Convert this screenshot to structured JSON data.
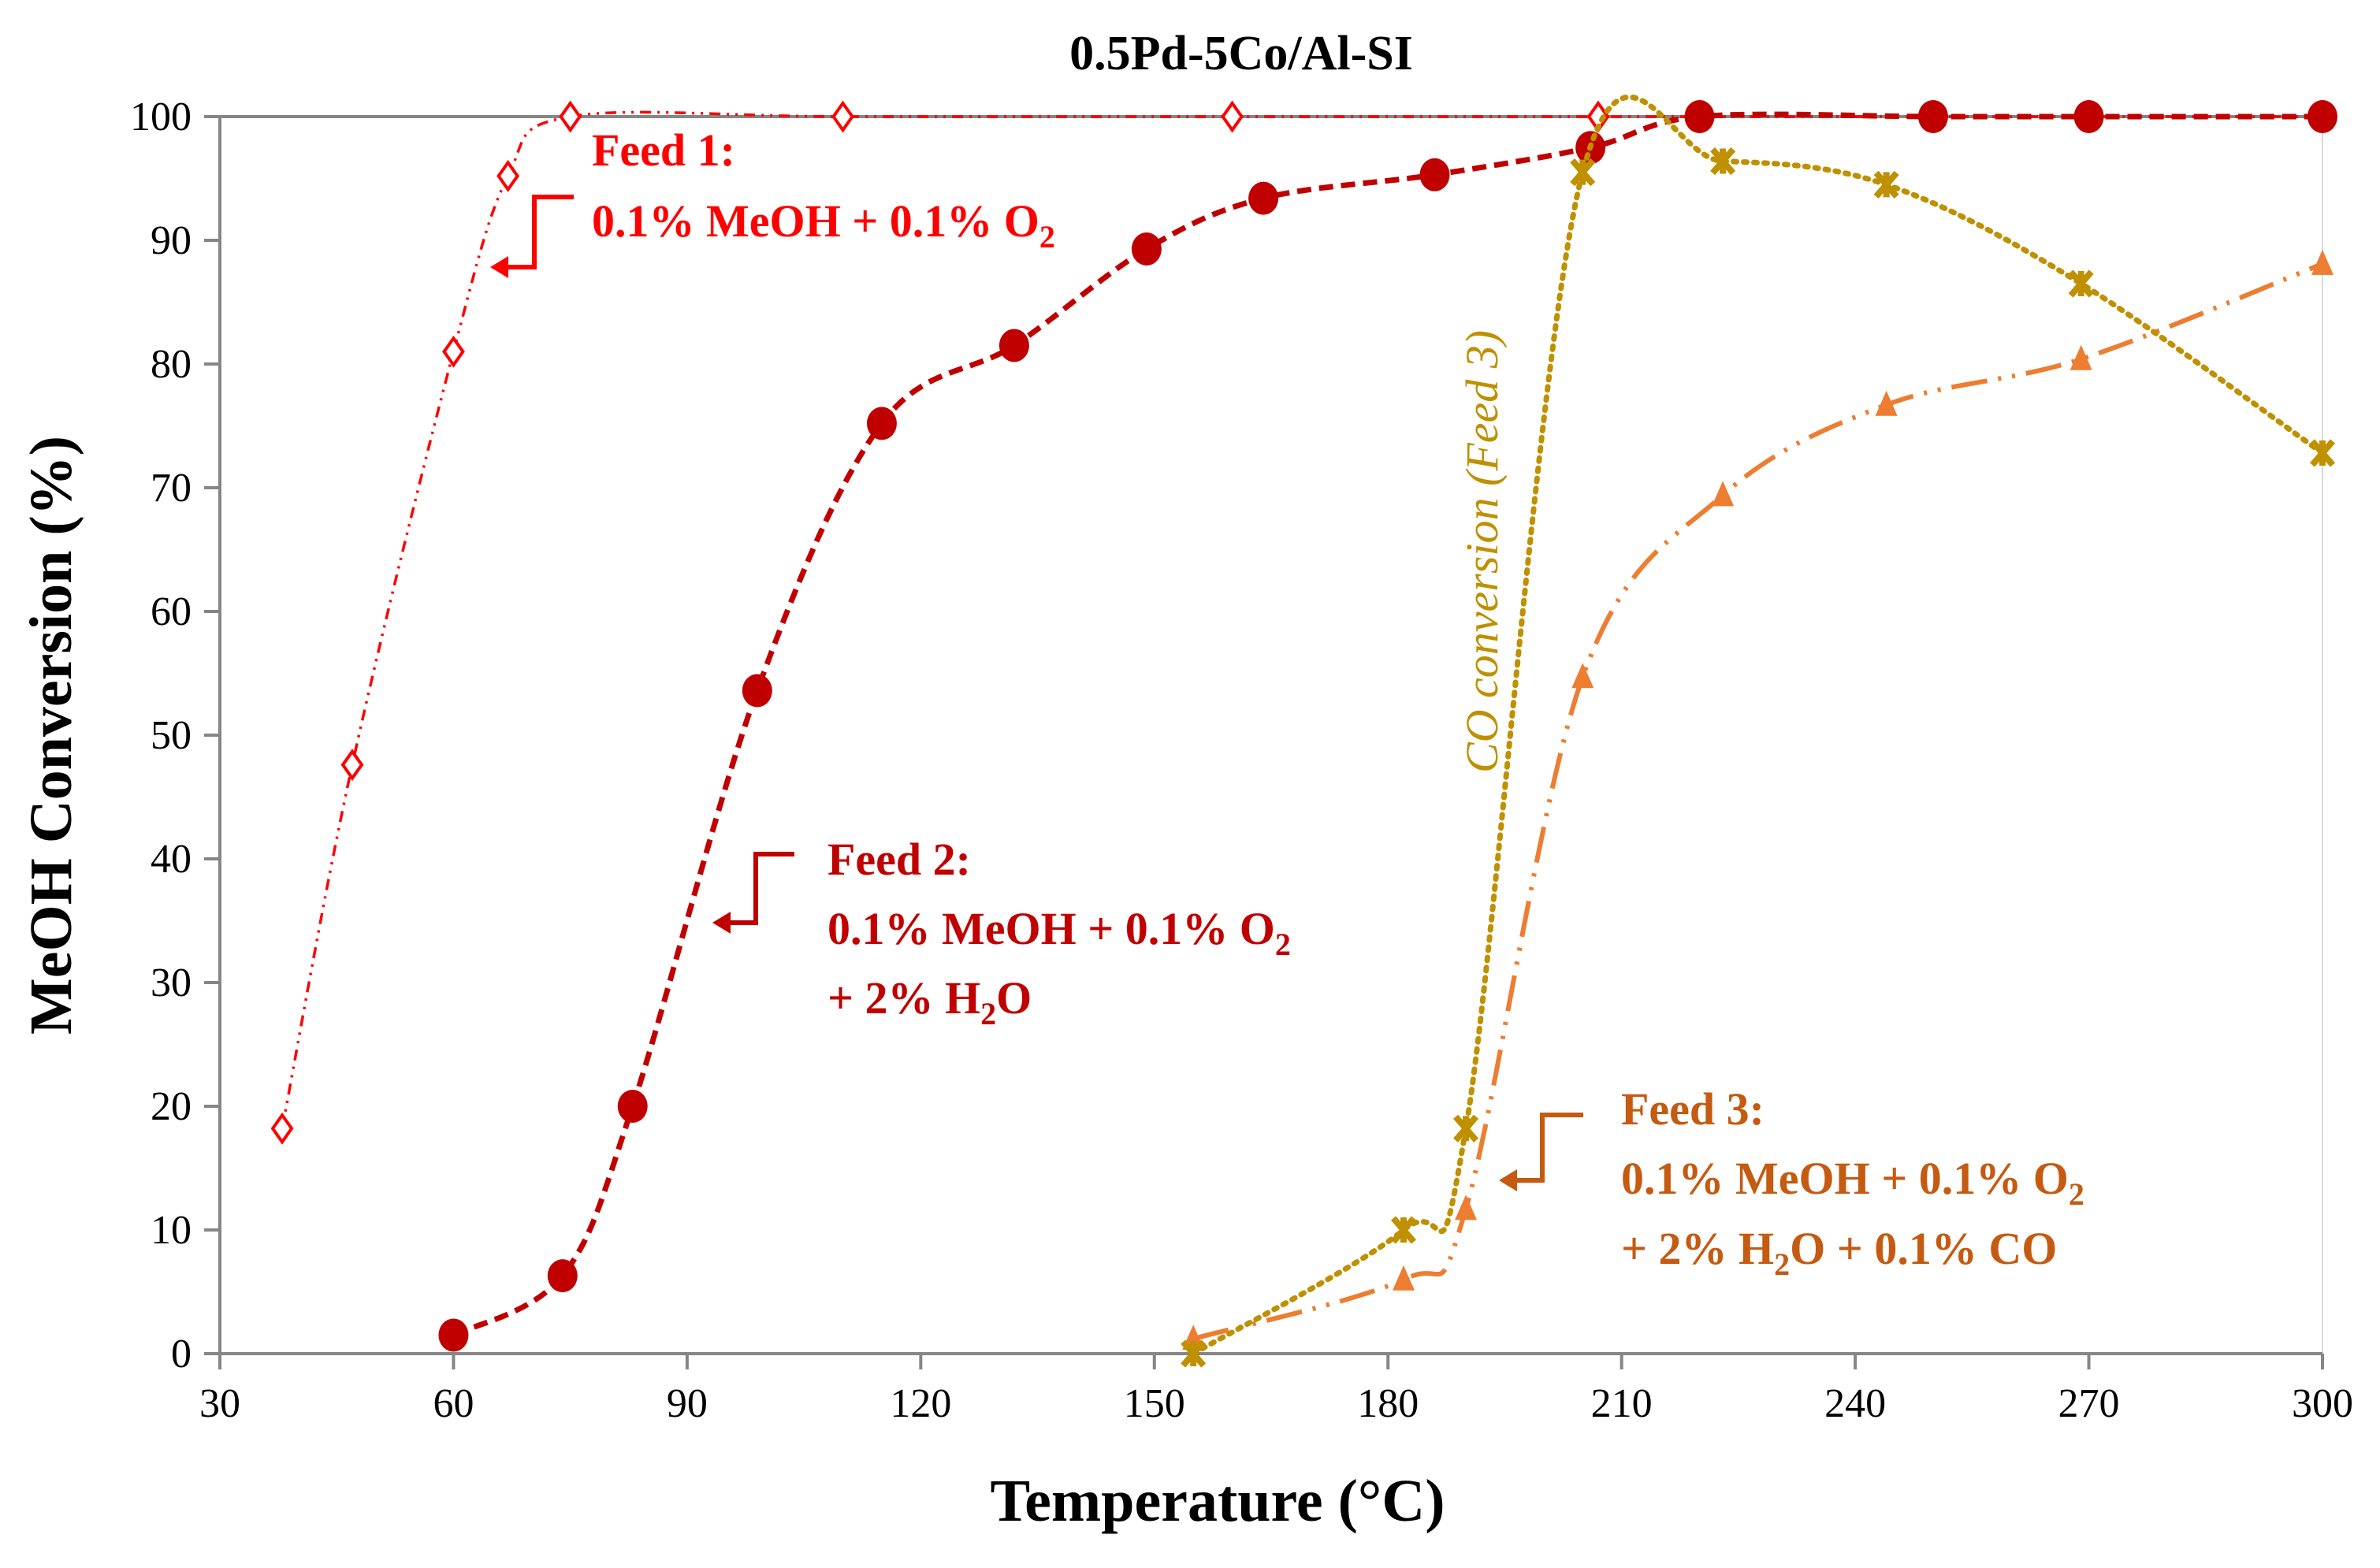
{
  "chart_data": {
    "type": "line",
    "title": "0.5Pd-5Co/Al-SI",
    "xlabel": "Temperature (°C)",
    "ylabel": "MeOH Conversion (%)",
    "xlim": [
      30,
      300
    ],
    "ylim": [
      0,
      100
    ],
    "xticks": [
      "30",
      "60",
      "90",
      "120",
      "150",
      "180",
      "210",
      "240",
      "270",
      "300"
    ],
    "yticks": [
      "0",
      "10",
      "20",
      "30",
      "40",
      "50",
      "60",
      "70",
      "80",
      "90",
      "100"
    ],
    "grid": false,
    "series": [
      {
        "key": "feed1",
        "color": "#FF0000",
        "marker": "open-diamond",
        "line": "dash-dot-dot",
        "x": [
          38,
          47,
          60,
          67,
          75,
          110,
          160,
          207,
          300
        ],
        "y": [
          18.2,
          47.6,
          81,
          95.2,
          100,
          100,
          100,
          100,
          100
        ]
      },
      {
        "key": "feed2",
        "color": "#C00000",
        "marker": "filled-circle",
        "line": "dashed",
        "x": [
          60,
          74,
          83,
          99,
          115,
          132,
          149,
          164,
          186,
          206,
          220,
          250,
          270,
          300
        ],
        "y": [
          1.5,
          6.3,
          20,
          53.6,
          75.2,
          81.5,
          89.3,
          93.4,
          95.3,
          97.5,
          100,
          100,
          100,
          100
        ]
      },
      {
        "key": "feed3",
        "color": "#ED7D31",
        "marker": "filled-triangle",
        "line": "long-dash-dot-dot",
        "x": [
          155,
          182,
          190,
          205,
          223,
          244,
          269,
          300
        ],
        "y": [
          1.2,
          6,
          11.7,
          54.7,
          69.4,
          76.7,
          80.4,
          88.1
        ]
      },
      {
        "key": "co",
        "color": "#BF9000",
        "marker": "x",
        "line": "dotted",
        "x": [
          155,
          182,
          190,
          205,
          223,
          244,
          269,
          300
        ],
        "y": [
          0,
          10,
          18.2,
          95.5,
          96.4,
          94.5,
          86.5,
          72.8
        ]
      }
    ],
    "annotations": {
      "feed1": {
        "color": "#FF0000",
        "line1": "Feed 1:",
        "line2": "0.1% MeOH + 0.1% O",
        "line2_sub": "2"
      },
      "feed2": {
        "color": "#C00000",
        "line1": "Feed 2:",
        "line2": "0.1% MeOH + 0.1% O",
        "line2_sub": "2",
        "line3_a": "+ 2% H",
        "line3_sub": "2",
        "line3_b": "O"
      },
      "feed3": {
        "color": "#C55A11",
        "line1": "Feed 3:",
        "line2": "0.1% MeOH + 0.1% O",
        "line2_sub": "2",
        "line3_a": "+ 2% H",
        "line3_sub": "2",
        "line3_b": "O + 0.1% CO"
      },
      "co": {
        "color": "#BF9000",
        "text": "CO conversion (Feed 3)"
      }
    }
  }
}
